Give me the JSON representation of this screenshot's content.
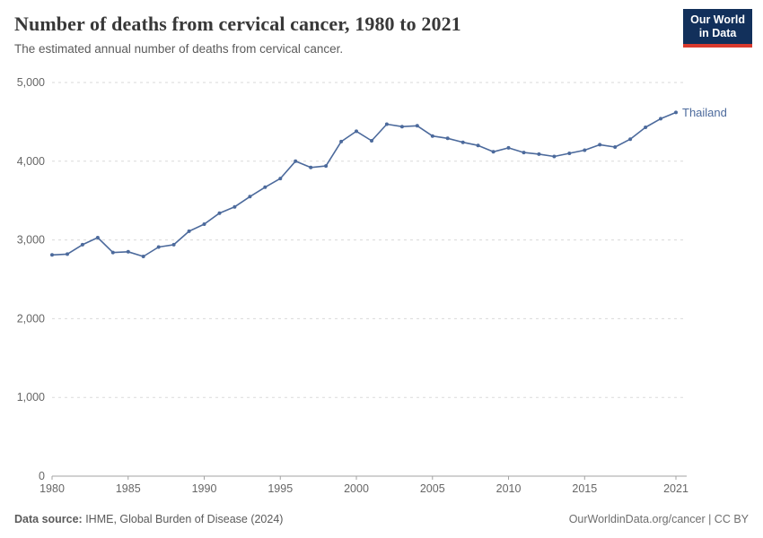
{
  "header": {
    "title": "Number of deaths from cervical cancer, 1980 to 2021",
    "subtitle": "The estimated annual number of deaths from cervical cancer.",
    "logo": {
      "line1": "Our World",
      "line2": "in Data"
    }
  },
  "chart_data": {
    "type": "line",
    "title": "Number of deaths from cervical cancer, 1980 to 2021",
    "xlabel": "",
    "ylabel": "",
    "xlim": [
      1980,
      2021
    ],
    "ylim": [
      0,
      5000
    ],
    "grid": "horizontal-dashed",
    "legend_position": "end-of-line-label",
    "x_ticks": [
      1980,
      1985,
      1990,
      1995,
      2000,
      2005,
      2010,
      2015,
      2021
    ],
    "y_ticks": [
      0,
      1000,
      2000,
      3000,
      4000,
      5000
    ],
    "y_tick_labels": [
      "0",
      "1,000",
      "2,000",
      "3,000",
      "4,000",
      "5,000"
    ],
    "series": [
      {
        "name": "Thailand",
        "color": "#4c6a9c",
        "x": [
          1980,
          1981,
          1982,
          1983,
          1984,
          1985,
          1986,
          1987,
          1988,
          1989,
          1990,
          1991,
          1992,
          1993,
          1994,
          1995,
          1996,
          1997,
          1998,
          1999,
          2000,
          2001,
          2002,
          2003,
          2004,
          2005,
          2006,
          2007,
          2008,
          2009,
          2010,
          2011,
          2012,
          2013,
          2014,
          2015,
          2016,
          2017,
          2018,
          2019,
          2020,
          2021
        ],
        "values": [
          2810,
          2820,
          2940,
          3030,
          2840,
          2850,
          2790,
          2910,
          2940,
          3110,
          3200,
          3340,
          3420,
          3550,
          3670,
          3780,
          4000,
          3920,
          3940,
          4250,
          4380,
          4260,
          4470,
          4440,
          4450,
          4320,
          4290,
          4240,
          4200,
          4120,
          4170,
          4110,
          4090,
          4060,
          4100,
          4140,
          4210,
          4180,
          4280,
          4430,
          4540,
          4620
        ]
      }
    ]
  },
  "footer": {
    "source_label": "Data source:",
    "source_text": " IHME, Global Burden of Disease (2024)",
    "rights": "OurWorldinData.org/cancer | CC BY"
  },
  "colors": {
    "line": "#4c6a9c",
    "grid": "#dadada",
    "axis": "#a3a3a3",
    "tick_text": "#666666",
    "logo_bg": "#12305b",
    "logo_bar": "#d93a2d"
  }
}
